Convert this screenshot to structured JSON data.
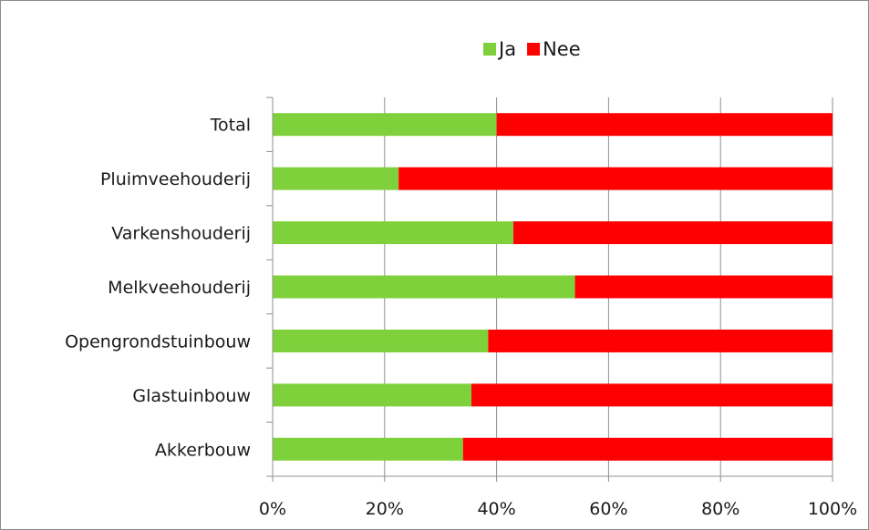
{
  "chart_data": {
    "type": "bar",
    "orientation": "horizontal",
    "stacked": "percent",
    "title": "",
    "xlabel": "",
    "ylabel": "",
    "xlim": [
      0,
      100
    ],
    "x_ticks": [
      "0%",
      "20%",
      "40%",
      "60%",
      "80%",
      "100%"
    ],
    "grid": "vertical",
    "legend_position": "top",
    "categories": [
      "Total",
      "Pluimveehouderij",
      "Varkenshouderij",
      "Melkveehouderij",
      "Opengrondstuinbouw",
      "Glastuinbouw",
      "Akkerbouw"
    ],
    "series": [
      {
        "name": "Ja",
        "color": "#7fd13b",
        "values": [
          40,
          22.5,
          43,
          54,
          38.5,
          35.5,
          34
        ]
      },
      {
        "name": "Nee",
        "color": "#ff0000",
        "values": [
          60,
          77.5,
          57,
          46,
          61.5,
          64.5,
          66
        ]
      }
    ]
  }
}
